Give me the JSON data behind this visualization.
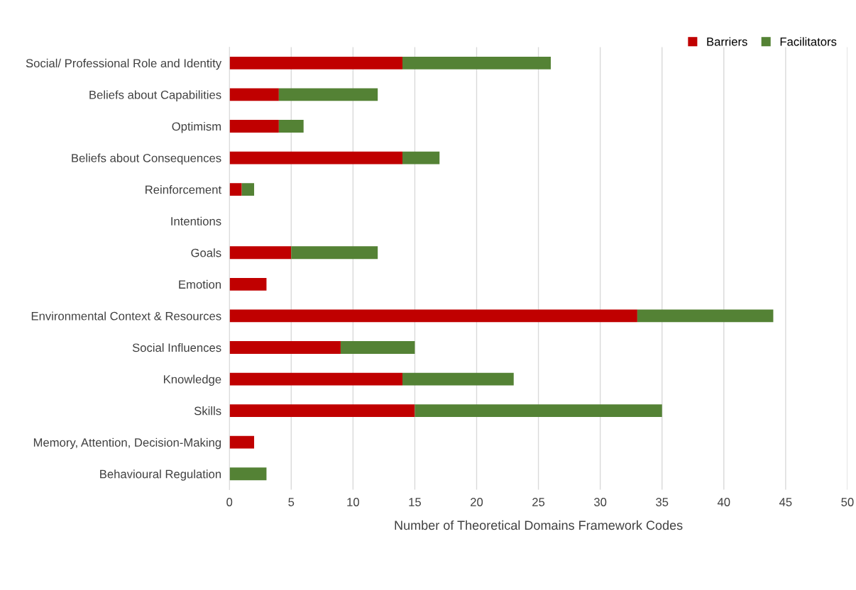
{
  "chart_data": {
    "type": "bar",
    "orientation": "horizontal",
    "stacked": true,
    "xlabel": "Number of Theoretical Domains Framework Codes",
    "categories": [
      "Social/ Professional Role and Identity",
      "Beliefs about Capabilities",
      "Optimism",
      "Beliefs about Consequences",
      "Reinforcement",
      "Intentions",
      "Goals",
      "Emotion",
      "Environmental Context & Resources",
      "Social Influences",
      "Knowledge",
      "Skills",
      "Memory, Attention, Decision-Making",
      "Behavioural Regulation"
    ],
    "series": [
      {
        "name": "Barriers",
        "color": "#c00000",
        "values": [
          14,
          4,
          4,
          14,
          1,
          0,
          5,
          3,
          33,
          9,
          14,
          15,
          2,
          0
        ]
      },
      {
        "name": "Facilitators",
        "color": "#548235",
        "values": [
          12,
          8,
          2,
          3,
          1,
          0,
          7,
          0,
          11,
          6,
          9,
          20,
          0,
          3
        ]
      }
    ],
    "xlim": [
      0,
      50
    ],
    "xticks": [
      0,
      5,
      10,
      15,
      20,
      25,
      30,
      35,
      40,
      45,
      50
    ],
    "grid": "x",
    "legend": "top right"
  }
}
